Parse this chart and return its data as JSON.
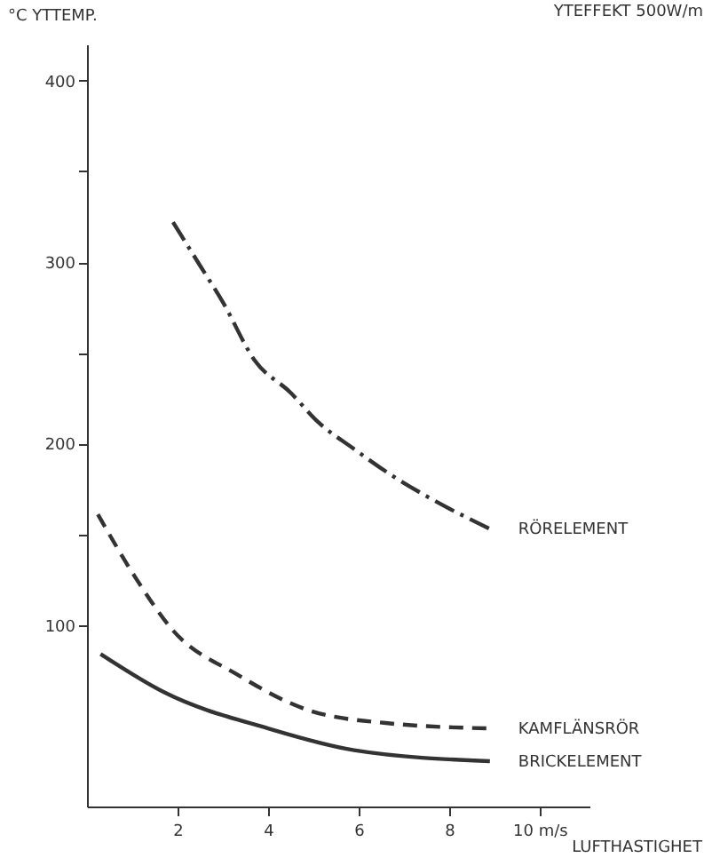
{
  "chart_data": {
    "type": "line",
    "ylabel": "°C YTTEMP.",
    "xlabel": "LUFTHASTIGHET",
    "annotations": [
      "YTEFFEKT 500W/m"
    ],
    "xlim": [
      0,
      11.1
    ],
    "xticks": [
      2,
      4,
      6,
      8,
      {
        "value": 10,
        "label": "10 m/s"
      }
    ],
    "ylim": [
      0,
      420
    ],
    "yticks": [
      100,
      {
        "value": 150,
        "label": null
      },
      200,
      {
        "value": 250,
        "label": null
      },
      300,
      {
        "value": 350,
        "label": null
      },
      400
    ],
    "grid": false,
    "legend": false,
    "marker": "none",
    "series": [
      {
        "name": "RÖRELEMENT",
        "color": "#333333",
        "line_style": "dashdot",
        "x": [
          1.9,
          2.5,
          3,
          3.7,
          4.5,
          5.1,
          5.9,
          6.7,
          7.5,
          8.9
        ],
        "values": [
          322,
          298,
          278,
          246,
          228,
          212,
          197,
          183,
          171,
          153
        ]
      },
      {
        "name": "KAMFLÄNSRÖR",
        "color": "#333333",
        "line_style": "dashed",
        "x": [
          0.24,
          1.1,
          1.9,
          3.3,
          4.9,
          6.6,
          8.9
        ],
        "values": [
          161,
          125,
          97,
          73,
          53,
          46,
          43
        ]
      },
      {
        "name": "BRICKELEMENT",
        "color": "#333333",
        "line_style": "solid",
        "x": [
          0.3,
          1.7,
          4,
          5.9,
          8.9
        ],
        "values": [
          84,
          63,
          43,
          31,
          25
        ]
      }
    ]
  }
}
